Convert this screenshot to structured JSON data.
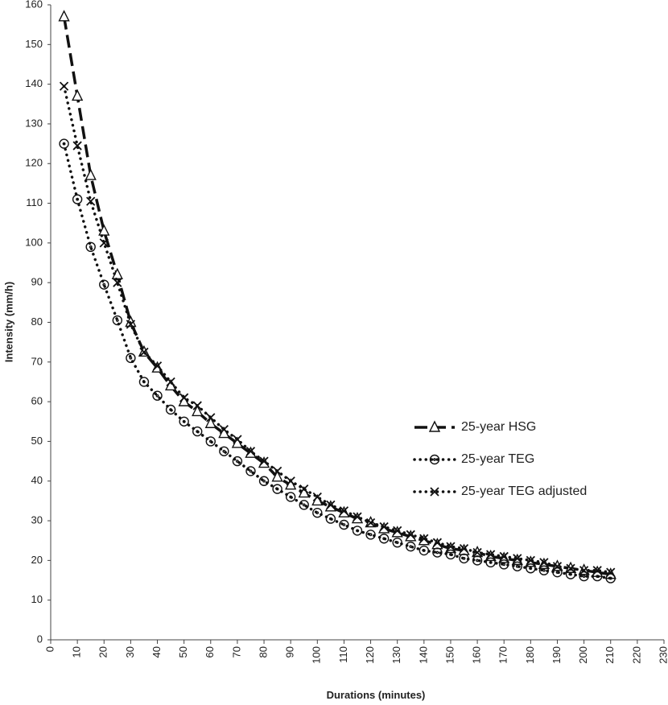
{
  "chart_data": {
    "type": "line",
    "x_label": "Durations (minutes)",
    "y_label": "Intensity (mm/h)",
    "x": [
      5,
      10,
      15,
      20,
      25,
      30,
      35,
      40,
      45,
      50,
      55,
      60,
      65,
      70,
      75,
      80,
      85,
      90,
      95,
      100,
      105,
      110,
      115,
      120,
      125,
      130,
      135,
      140,
      145,
      150,
      155,
      160,
      165,
      170,
      175,
      180,
      185,
      190,
      195,
      200,
      205,
      210
    ],
    "series": [
      {
        "name": "25-year HSG",
        "color": "#111111",
        "line_style": "dashed",
        "marker": "triangle",
        "values": [
          157,
          137,
          117,
          103,
          92,
          80,
          72.5,
          68.5,
          64,
          60,
          57.5,
          54.5,
          52,
          49.5,
          47,
          44.5,
          41,
          39,
          37,
          35,
          33.5,
          32,
          30.5,
          29.5,
          28,
          27,
          26,
          25,
          24,
          23,
          22.5,
          22,
          21,
          20.5,
          20,
          19.5,
          19,
          18.5,
          18,
          17.5,
          17,
          16.5
        ]
      },
      {
        "name": "25-year TEG",
        "color": "#111111",
        "line_style": "dotted",
        "marker": "circle-dot",
        "values": [
          125,
          111,
          99,
          89.5,
          80.5,
          71,
          65,
          61.5,
          58,
          55,
          52.5,
          50,
          47.5,
          45,
          42.5,
          40,
          38,
          36,
          34,
          32,
          30.5,
          29,
          27.5,
          26.5,
          25.5,
          24.5,
          23.5,
          22.5,
          22,
          21.5,
          20.5,
          20,
          19.5,
          19,
          18.5,
          18,
          17.5,
          17,
          16.5,
          16,
          16,
          15.5
        ]
      },
      {
        "name": "25-year TEG adjusted",
        "color": "#111111",
        "line_style": "dotted",
        "marker": "cross",
        "values": [
          139.5,
          124.5,
          110.5,
          100,
          90,
          79.5,
          72.5,
          69,
          65,
          61,
          59,
          56,
          53,
          50.5,
          47.5,
          45,
          42.5,
          40,
          38,
          36,
          34,
          32.5,
          31,
          29.5,
          28.5,
          27.5,
          26.5,
          25.5,
          24.5,
          23.5,
          23,
          22,
          21.5,
          21,
          20.5,
          20,
          19.5,
          18.5,
          18,
          17.5,
          17.5,
          17
        ]
      }
    ],
    "xlim": [
      0,
      230
    ],
    "xticks": [
      0,
      10,
      20,
      30,
      40,
      50,
      60,
      70,
      80,
      90,
      100,
      110,
      120,
      130,
      140,
      150,
      160,
      170,
      180,
      190,
      200,
      210,
      220,
      230
    ],
    "ylim": [
      0,
      160
    ],
    "yticks": [
      0,
      10,
      20,
      30,
      40,
      50,
      60,
      70,
      80,
      90,
      100,
      110,
      120,
      130,
      140,
      150,
      160
    ],
    "grid": false,
    "legend": "center right"
  }
}
